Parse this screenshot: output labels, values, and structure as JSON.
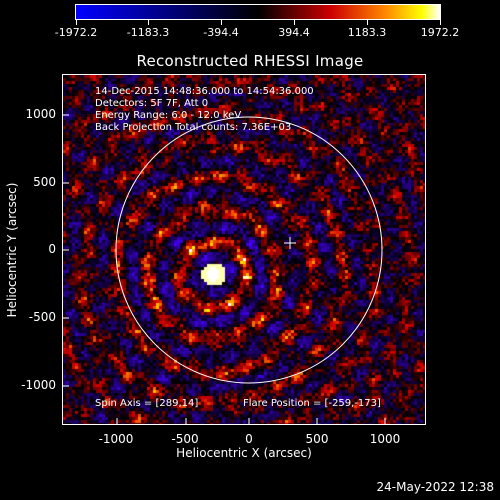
{
  "title": "Reconstructed RHESSI Image",
  "colorbar": {
    "ticks": [
      "-1972.2",
      "-1183.3",
      "-394.4",
      "394.4",
      "1183.3",
      "1972.2"
    ]
  },
  "info": {
    "time_range": "14-Dec-2015 14:48:36.000 to 14:54:36.000",
    "detectors": "Detectors: 5F 7F, Att 0",
    "energy_range": "Energy Range: 6.0 - 12.0 keV",
    "method": "Back Projection",
    "total_counts": "Total counts: 7.36E+03",
    "spin_axis": "Spin Axis = [289,14]",
    "flare_position": "Flare Position = [-259,-173]"
  },
  "axes": {
    "xlabel": "Heliocentric X (arcsec)",
    "ylabel": "Heliocentric Y (arcsec)",
    "xticks": [
      "-1000",
      "-500",
      "0",
      "500",
      "1000"
    ],
    "yticks": [
      "1000",
      "500",
      "0",
      "-500",
      "-1000"
    ],
    "xlim": [
      -1350,
      1300
    ],
    "ylim": [
      -1280,
      1270
    ]
  },
  "timestamp": "24-May-2022 12:38",
  "colors": {
    "background": "#000000",
    "foreground": "#ffffff"
  }
}
